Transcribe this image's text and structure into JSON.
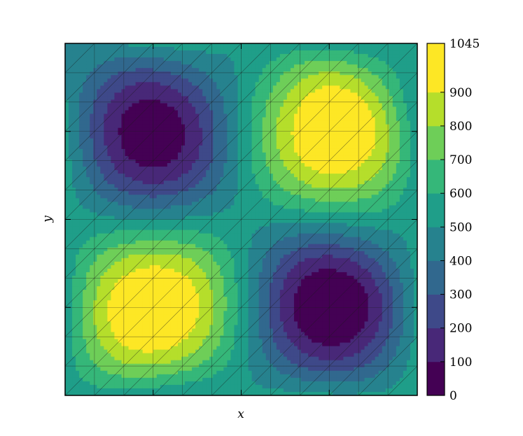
{
  "chart_data": {
    "type": "heatmap",
    "subtype": "filled-contour-on-triangular-mesh",
    "title": "",
    "xlabel": "x",
    "ylabel": "y",
    "x_tick_labels": [],
    "y_tick_labels": [],
    "grid_nodes": 13,
    "field": {
      "description_formula": "value = 525 + 520 * sin(2*pi*x) * sin(2*pi*y) + noise, domain [0,1]x[0,1]",
      "max_location": [
        [
          0.71,
          0.75
        ],
        [
          0.26,
          0.25
        ]
      ],
      "min_location": [
        [
          0.27,
          0.73
        ],
        [
          0.73,
          0.24
        ]
      ]
    },
    "z_range": [
      0,
      1045
    ],
    "contour_levels": [
      0,
      100,
      200,
      300,
      400,
      500,
      600,
      700,
      800,
      900,
      1045
    ],
    "colorbar": {
      "tick_labels": [
        "0",
        "100",
        "200",
        "300",
        "400",
        "500",
        "600",
        "700",
        "800",
        "900",
        "1045"
      ],
      "colormap": "viridis",
      "band_colors": [
        "#440154",
        "#482878",
        "#3e4989",
        "#31688e",
        "#26828e",
        "#1f9e89",
        "#35b779",
        "#6ece58",
        "#b5de2b",
        "#fde725"
      ]
    },
    "mesh_overlay": true,
    "mesh_color": "#1a1a1a",
    "grid": false
  }
}
